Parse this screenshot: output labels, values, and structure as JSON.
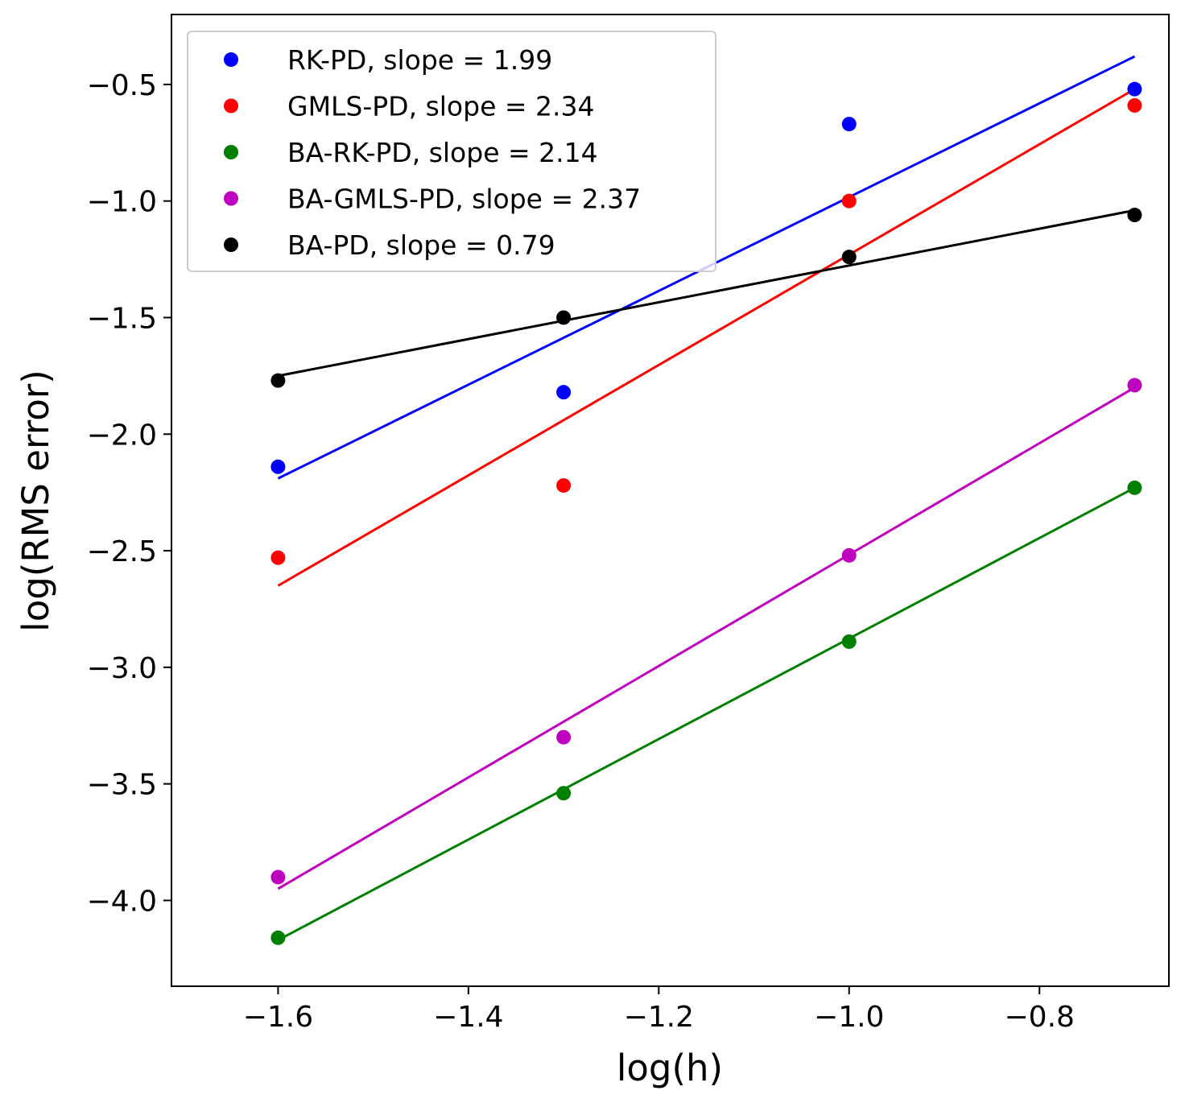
{
  "chart_data": {
    "type": "scatter",
    "title": "",
    "xlabel": "log(h)",
    "ylabel": "log(RMS error)",
    "xlim": [
      -1.712,
      -0.664
    ],
    "ylim": [
      -4.368,
      -0.2
    ],
    "xticks": [
      -1.6,
      -1.4,
      -1.2,
      -1.0,
      -0.8
    ],
    "xtick_labels": [
      "−1.6",
      "−1.4",
      "−1.2",
      "−1.0",
      "−0.8"
    ],
    "yticks": [
      -4.0,
      -3.5,
      -3.0,
      -2.5,
      -2.0,
      -1.5,
      -1.0,
      -0.5
    ],
    "ytick_labels": [
      "−4.0",
      "−3.5",
      "−3.0",
      "−2.5",
      "−2.0",
      "−1.5",
      "−1.0",
      "−0.5"
    ],
    "legend_position": "top-left",
    "x": [
      -1.6,
      -1.3,
      -1.0,
      -0.7
    ],
    "series": [
      {
        "name": "RK-PD, slope = 1.99",
        "color": "#0000ff",
        "values": [
          -2.14,
          -1.82,
          -0.67,
          -0.52
        ],
        "fit_line": [
          [
            -1.6,
            -2.19
          ],
          [
            -0.7,
            -0.38
          ]
        ]
      },
      {
        "name": "GMLS-PD, slope = 2.34",
        "color": "#ff0000",
        "values": [
          -2.53,
          -2.22,
          -1.0,
          -0.59
        ],
        "fit_line": [
          [
            -1.6,
            -2.65
          ],
          [
            -0.7,
            -0.52
          ]
        ]
      },
      {
        "name": "BA-RK-PD, slope = 2.14",
        "color": "#008000",
        "values": [
          -4.16,
          -3.54,
          -2.89,
          -2.23
        ],
        "fit_line": [
          [
            -1.6,
            -4.17
          ],
          [
            -0.7,
            -2.23
          ]
        ]
      },
      {
        "name": "BA-GMLS-PD, slope = 2.37",
        "color": "#bf00bf",
        "values": [
          -3.9,
          -3.3,
          -2.52,
          -1.79
        ],
        "fit_line": [
          [
            -1.6,
            -3.95
          ],
          [
            -0.7,
            -1.8
          ]
        ]
      },
      {
        "name": "BA-PD, slope = 0.79",
        "color": "#000000",
        "values": [
          -1.77,
          -1.5,
          -1.24,
          -1.06
        ],
        "fit_line": [
          [
            -1.6,
            -1.75
          ],
          [
            -0.7,
            -1.04
          ]
        ]
      }
    ]
  }
}
